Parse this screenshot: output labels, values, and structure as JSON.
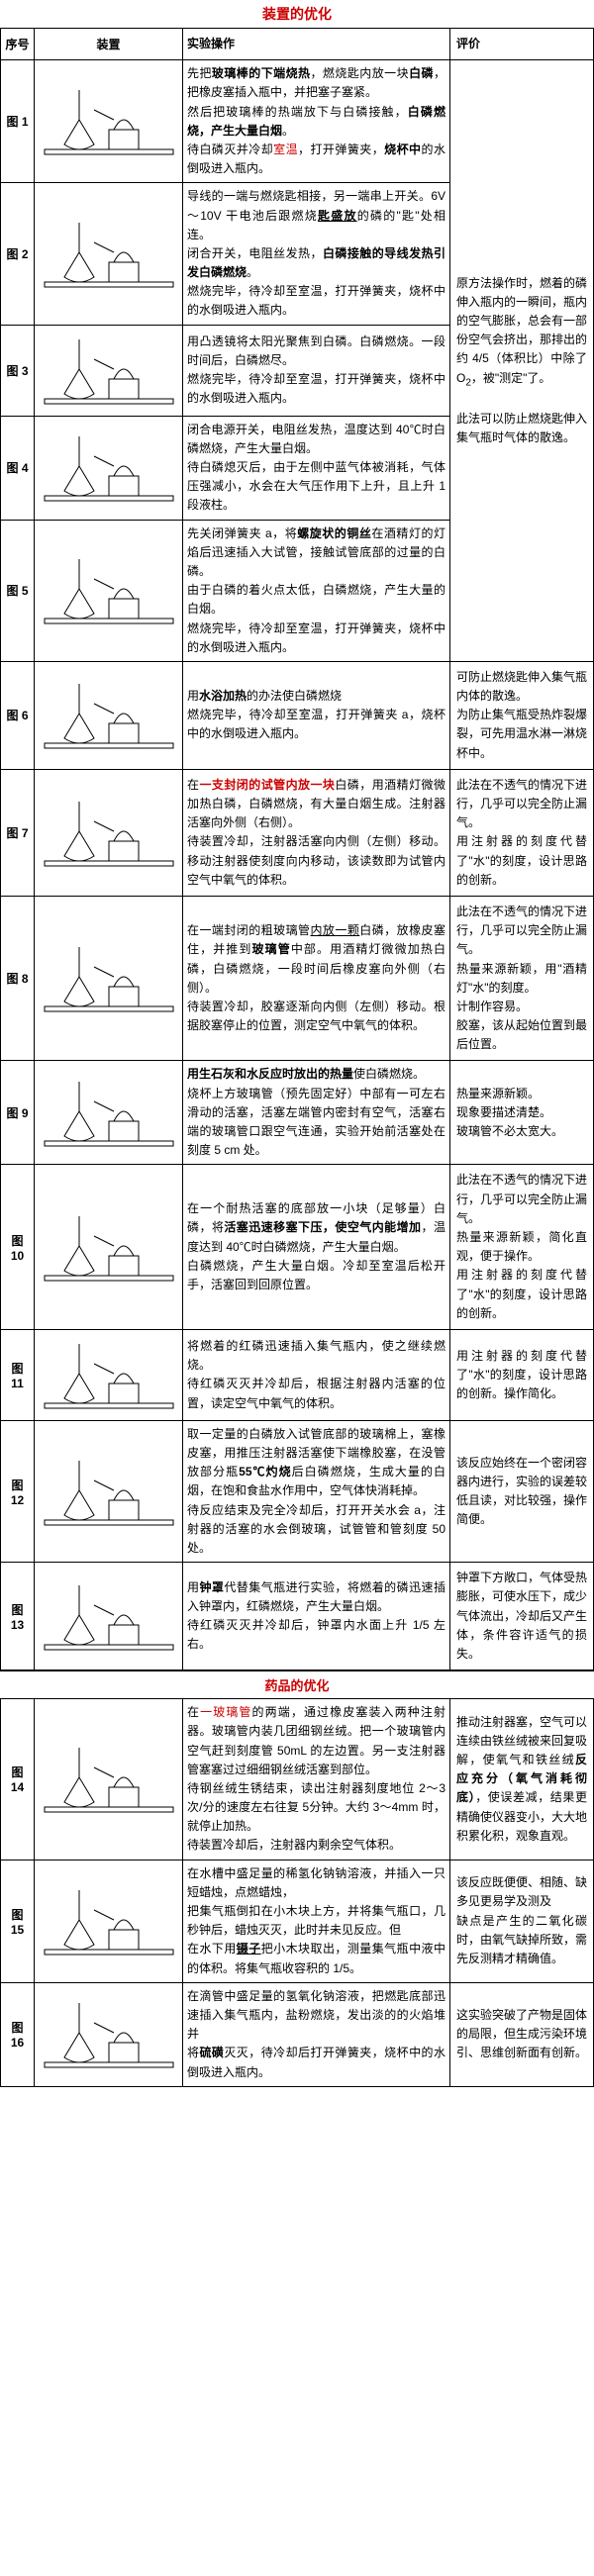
{
  "section1_title": "装置的优化",
  "section2_title": "药品的优化",
  "headers": {
    "seq": "序号",
    "device": "装置",
    "operation": "实验操作",
    "eval": "评价"
  },
  "rows": [
    {
      "seq": "图 1",
      "op_html": "<span class='indent'></span>先把<span class='bold'>玻璃棒的下端烧热</span>，燃烧匙内放一块<span class='bold'>白磷</span>，把橡皮塞插入瓶中，并把塞子塞紧。<br><span class='indent'></span>然后把玻璃棒的热端放下与白磷接触，<span class='bold'>白磷燃烧，产生大量白烟</span>。<br><span class='indent'></span>待白磷灭并冷却<span class='red'>室温</span>，打开弹簧夹，<span class='bold'>烧杯中</span>的水倒吸进入瓶内。"
    },
    {
      "seq": "图 2",
      "op_html": "<span class='indent'></span>导线的一端与燃烧匙相接，另一端串上开关。6V～10V 干电池后跟燃烧<span class='bold u'>匙盛放</span>的磷的\"匙\"处相连。<br><span class='indent'></span>闭合开关，电阻丝发热，<span class='bold'>白磷接触的导线发热引发白磷燃烧</span>。<br><span class='indent'></span>燃烧完毕，待冷却至室温，打开弹簧夹，烧杯中的水倒吸进入瓶内。"
    },
    {
      "seq": "图 3",
      "op_html": "<span class='indent'></span>用凸透镜将太阳光聚焦到白磷。白磷燃烧。一段时间后，白磷燃尽。<br><span class='indent'></span>燃烧完毕，待冷却至室温，打开弹簧夹，烧杯中的水倒吸进入瓶内。"
    },
    {
      "seq": "图 4",
      "op_html": "<span class='indent'></span>闭合电源开关，电阻丝发热，温度达到 40℃时白磷燃烧，产生大量白烟。<br><span class='indent'></span>待白磷熄灭后，由于左侧中蓝气体被消耗，气体压强减小，水会在大气压作用下上升，且上升 1 段液柱。"
    },
    {
      "seq": "图 5",
      "op_html": "<span class='indent'></span>先关闭弹簧夹 a，将<span class='bold'>螺旋状的铜丝</span>在酒精灯的灯焰后迅速插入大试管，接触试管底部的过量的白磷。<br><span class='indent'></span>由于白磷的着火点太低，白磷燃烧，产生大量的白烟。<br><span class='indent'></span>燃烧完毕，待冷却至室温，打开弹簧夹，烧杯中的水倒吸进入瓶内。",
      "eval_html": "<span class='indent'></span>原方法操作时，燃着的磷伸入瓶内的一瞬间，瓶内的空气膨胀，总会有一部份空气会挤出，那排出的约 4/5（体积比）中除了 O<sub>2</sub>，被\"测定\"了。<br><br><span class='indent'></span>此法可以防止燃烧匙伸入集气瓶时气体的散逸。",
      "eval_rowspan": 5
    },
    {
      "seq": "图 6",
      "op_html": "<span class='indent'></span>用<span class='bold'>水浴加热</span>的办法使白磷燃烧<br><span class='indent'></span>燃烧完毕，待冷却至室温，打开弹簧夹 a，烧杯中的水倒吸进入瓶内。",
      "eval_html": "可防止燃烧匙伸入集气瓶内体的散逸。<br><span class='indent'></span>为防止集气瓶受热炸裂爆裂，可先用温水淋一淋烧杯中。"
    },
    {
      "seq": "图 7",
      "op_html": "<span class='indent'></span>在<span class='bold red'>一支封闭的试管内放一块</span>白磷，用酒精灯微微加热白磷，白磷燃烧，有大量白烟生成。注射器活塞向外侧（右侧）。<br><span class='indent'></span>待装置冷却，注射器活塞向内侧（左侧）移动。移动注射器使刻度向内移动，该读数即为试管内空气中氧气的体积。",
      "eval_html": "<span class='indent'></span>此法在不透气的情况下进行，几乎可以完全防止漏气。<br><span class='indent'></span>用注射器的刻度代替了\"水\"的刻度，设计思路的创新。"
    },
    {
      "seq": "图 8",
      "op_html": "<span class='indent'></span>在一端封闭的粗玻璃管<span class='u'>内放一颗</span>白磷，放橡皮塞住，并推到<span class='bold'>玻璃管</span>中部。用酒精灯微微加热白磷，白磷燃烧，一段时间后橡皮塞向外侧（右侧）。<br><span class='indent'></span>待装置冷却，胶塞逐渐向内侧（左侧）移动。根据胶塞停止的位置，测定空气中氧气的体积。",
      "eval_html": "<span class='indent'></span>此法在不透气的情况下进行，几乎可以完全防止漏气。<br><span class='indent'></span>热量来源新颖，用\"酒精灯\"水\"的刻度。<br><span class='indent'></span>计制作容易。<br><span class='indent'></span>胶塞，该从起始位置到最后位置。"
    },
    {
      "seq": "图 9",
      "op_html": "<span class='indent'></span><span class='bold'>用生石灰和水反应时放出的热量</span>使白磷燃烧。<br><span class='indent'></span>烧杯上方玻璃管（预先固定好）中部有一可左右滑动的活塞，活塞左端管内密封有空气，活塞右端的玻璃管口跟空气连通，实验开始前活塞处在刻度 5 cm 处。",
      "eval_html": "<span class='indent'></span>热量来源新颖。<br><span class='indent'></span>现象要描述清楚。<br><span class='indent'></span>玻璃管不必太宽大。"
    },
    {
      "seq": "图 10",
      "op_html": "<span class='indent'></span>在一个耐热活塞的底部放一小块（足够量）白磷，将<span class='bold'>活塞迅速移塞下压，使空气内能增加</span>，温度达到 40℃时白磷燃烧，产生大量白烟。<br><span class='indent'></span>白磷燃烧，产生大量白烟。冷却至室温后松开手，活塞回到回原位置。",
      "eval_html": "<span class='indent'></span>此法在不透气的情况下进行，几乎可以完全防止漏气。<br><span class='indent'></span>热量来源新颖，简化直观，便于操作。<br><span class='indent'></span>用注射器的刻度代替了\"水\"的刻度，设计思路的创新。"
    },
    {
      "seq": "图 11",
      "op_html": "<span class='indent'></span>将燃着的红磷迅速插入集气瓶内，使之继续燃烧。<br><span class='indent'></span>待红磷灭灭并冷却后，根据注射器内活塞的位置，读定空气中氧气的体积。",
      "eval_html": "<span class='indent'></span>用注射器的刻度代替了\"水\"的刻度，设计思路的创新。操作简化。"
    },
    {
      "seq": "图 12",
      "op_html": "<span class='indent'></span>取一定量的白磷放入试管底部的玻璃棉上，塞橡皮塞，用推压注射器活塞使下端橡胶塞，在没管放部分瓶<span class='bold'>55℃灼烧</span>后白磷燃烧，生成大量的白烟，在饱和食盐水作用中，空气体快消耗掉。<br><span class='indent'></span>待反应结束及完全冷却后，打开开关水会 a，注射器的活塞的水会倒玻璃，试管管和管刻度 50 处。",
      "eval_html": "<span class='indent'></span>该反应始终在一个密闭容器内进行，实验的误差较低且读，对比较强，操作简便。"
    },
    {
      "seq": "图 13",
      "op_html": "<span class='indent'></span>用<span class='bold'>钟罩</span>代替集气瓶进行实验，将燃着的磷迅速插入钟罩内，红磷燃烧，产生大量白烟。<br><span class='indent'></span>待红磷灭灭并冷却后，钟罩内水面上升 1/5 左右。",
      "eval_html": "<span class='indent'></span>钟罩下方敞口，气体受热膨胀，可使水压下，成少气体流出，冷却后又产生体，条件容许适气的损失。"
    }
  ],
  "rows2": [
    {
      "seq": "图 14",
      "op_html": "<span class='indent'></span>在<span class='red'>一玻璃管</span>的两端，通过橡皮塞装入两种注射器。玻璃管内装几团细钢丝绒。把一个玻璃管内空气赶到刻度管 50mL 的左边置。另一支注射器管塞塞过过细细钢丝绒活塞到部位。<br><span class='indent'></span>待钢丝绒生锈结束，读出注射器刻度地位 2～3 次/分的速度左右往复 5分钟。大约 3～4mm 时，就停止加热。<br><span class='indent'></span>待装置冷却后，注射器内剩余空气体积。",
      "eval_html": "<span class='indent'></span>推动注射器塞，空气可以连续由铁丝绒被来回复吸解，使氧气和铁丝绒<span class='bold'>反应充分（氧气消耗彻底）</span>，使误差减，结果更精确使仪器变小，大大地积累化积，观象直观。"
    },
    {
      "seq": "图 15",
      "op_html": "<span class='indent'></span>在水槽中盛足量的稀氢化钠钠溶液，并插入一只短蜡烛，点燃蜡烛，<br><span class='indent'></span>把集气瓶倒扣在小木块上方，并将集气瓶口，几秒钟后，蜡烛灭灭，此时并未见反应。但<br><span class='indent'></span>在水下用<span class='bold u'>镊子</span>把小木块取出，测量集气瓶中液中的体积。将集气瓶收容积的 1/5。",
      "eval_html": "<span class='indent'></span>该反应既便便、相随、缺多见更易学及测及<br><span class='indent'></span>缺点是产生的二氧化碳时，由氧气缺掉所致，需先反测精才精确值。"
    },
    {
      "seq": "图 16",
      "op_html": "<span class='indent'></span>在滴管中盛足量的氢氧化钠溶液，把燃匙底部迅速插入集气瓶内，盐粉燃烧，发出淡的的火焰堆并<br><span class='indent'></span>将<span class='bold'>硫磺</span>灭灭，待冷却后打开弹簧夹，烧杯中的水倒吸进入瓶内。",
      "eval_html": "<span class='indent'></span>这实验突破了产物是固体的局限，但生成污染环境引、思维创新面有创新。"
    }
  ]
}
